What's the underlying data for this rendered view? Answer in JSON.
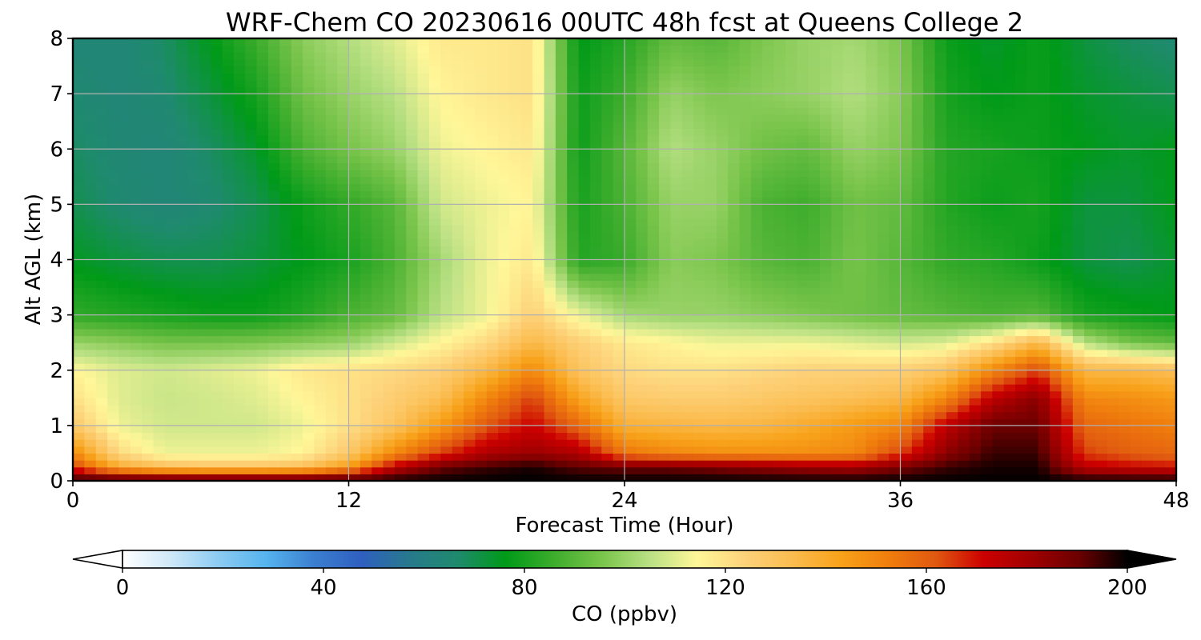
{
  "chart_data": {
    "type": "heatmap",
    "title": "WRF-Chem CO  20230616 00UTC 48h fcst at Queens College 2",
    "xlabel": "Forecast Time (Hour)",
    "ylabel": "Alt AGL (km)",
    "xlim": [
      0,
      48
    ],
    "ylim": [
      0,
      8
    ],
    "xticks": [
      0,
      12,
      24,
      36,
      48
    ],
    "yticks": [
      0,
      1,
      2,
      3,
      4,
      5,
      6,
      7,
      8
    ],
    "grid": true,
    "x": [
      0,
      2,
      4,
      6,
      8,
      10,
      12,
      14,
      16,
      18,
      20,
      22,
      24,
      26,
      28,
      30,
      32,
      34,
      36,
      38,
      40,
      42,
      44,
      46,
      48
    ],
    "y": [
      0,
      0.25,
      0.5,
      1,
      1.5,
      2,
      2.5,
      3,
      4,
      5,
      6,
      7,
      8
    ],
    "z": [
      [
        200,
        200,
        200,
        200,
        200,
        200,
        200,
        200,
        200,
        200,
        200,
        200,
        200,
        200,
        200,
        200,
        200,
        200,
        200,
        200,
        200,
        200,
        200,
        200,
        200
      ],
      [
        165,
        140,
        132,
        130,
        130,
        132,
        145,
        175,
        190,
        195,
        198,
        192,
        190,
        190,
        188,
        185,
        182,
        180,
        188,
        195,
        198,
        198,
        175,
        172,
        170
      ],
      [
        150,
        122,
        112,
        112,
        112,
        115,
        128,
        150,
        165,
        178,
        182,
        178,
        155,
        150,
        148,
        148,
        148,
        150,
        165,
        185,
        195,
        195,
        165,
        160,
        158
      ],
      [
        128,
        112,
        108,
        108,
        108,
        112,
        120,
        130,
        145,
        162,
        172,
        158,
        138,
        136,
        135,
        136,
        140,
        145,
        150,
        175,
        190,
        190,
        158,
        155,
        152
      ],
      [
        120,
        110,
        107,
        108,
        110,
        115,
        120,
        126,
        132,
        150,
        165,
        142,
        128,
        126,
        126,
        128,
        130,
        132,
        135,
        150,
        175,
        185,
        150,
        148,
        145
      ],
      [
        115,
        110,
        108,
        110,
        112,
        118,
        120,
        122,
        125,
        135,
        150,
        130,
        122,
        120,
        120,
        122,
        124,
        124,
        125,
        130,
        150,
        165,
        135,
        135,
        132
      ],
      [
        100,
        98,
        95,
        95,
        96,
        98,
        100,
        108,
        115,
        122,
        135,
        125,
        118,
        115,
        112,
        112,
        112,
        110,
        108,
        110,
        120,
        135,
        105,
        95,
        92
      ],
      [
        84,
        82,
        80,
        78,
        78,
        82,
        88,
        92,
        105,
        112,
        125,
        112,
        102,
        100,
        100,
        98,
        96,
        94,
        92,
        90,
        88,
        90,
        80,
        78,
        76
      ],
      [
        75,
        72,
        70,
        70,
        72,
        76,
        80,
        88,
        102,
        112,
        118,
        82,
        85,
        98,
        96,
        90,
        88,
        95,
        90,
        84,
        82,
        78,
        72,
        70,
        74
      ],
      [
        70,
        66,
        64,
        66,
        70,
        78,
        84,
        90,
        108,
        112,
        115,
        80,
        88,
        100,
        100,
        88,
        86,
        94,
        92,
        82,
        78,
        80,
        72,
        72,
        76
      ],
      [
        68,
        65,
        64,
        68,
        74,
        88,
        95,
        100,
        112,
        115,
        118,
        78,
        90,
        104,
        100,
        94,
        92,
        100,
        96,
        82,
        80,
        78,
        76,
        74,
        76
      ],
      [
        66,
        64,
        66,
        72,
        80,
        94,
        100,
        105,
        115,
        118,
        120,
        78,
        86,
        100,
        96,
        98,
        100,
        104,
        98,
        80,
        76,
        78,
        74,
        72,
        70
      ],
      [
        64,
        64,
        68,
        76,
        86,
        98,
        104,
        110,
        118,
        118,
        120,
        76,
        82,
        92,
        90,
        96,
        100,
        102,
        96,
        78,
        74,
        78,
        72,
        68,
        66
      ]
    ],
    "colorbar": {
      "label": "CO  (ppbv)",
      "min": 0,
      "max": 200,
      "ticks": [
        0,
        40,
        80,
        120,
        160,
        200
      ],
      "extend": "both",
      "colormap": [
        "#ffffff",
        "#cfe8f8",
        "#8ccbf2",
        "#56b4ee",
        "#3b7fd0",
        "#2f5fc0",
        "#277a8c",
        "#1f8a6e",
        "#009a18",
        "#3cac2c",
        "#78c44a",
        "#b8e083",
        "#fff799",
        "#fdd27a",
        "#fbbc4f",
        "#f8a21a",
        "#f07e0d",
        "#e05810",
        "#cc0000",
        "#a00000",
        "#6a0000",
        "#000000"
      ]
    }
  }
}
